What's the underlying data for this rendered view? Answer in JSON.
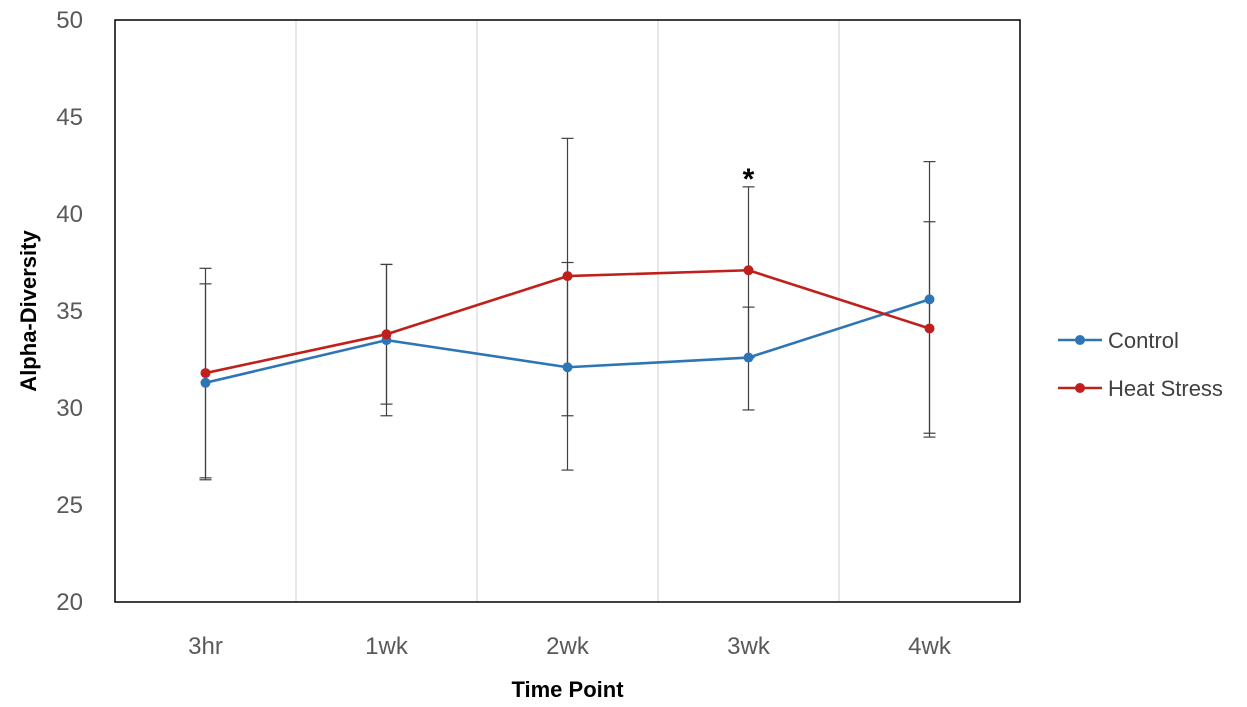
{
  "chart_data": {
    "type": "line",
    "title": "",
    "xlabel": "Time Point",
    "ylabel": "Alpha-Diversity",
    "categories": [
      "3hr",
      "1wk",
      "2wk",
      "3wk",
      "4wk"
    ],
    "ylim": [
      20,
      50
    ],
    "yticks": [
      "20",
      "25",
      "30",
      "35",
      "40",
      "45",
      "50"
    ],
    "grid": "vertical",
    "legend_position": "right",
    "series": [
      {
        "name": "Control",
        "color": "#2e75b6",
        "values": [
          31.3,
          33.5,
          32.1,
          32.6,
          35.6
        ],
        "error_high": [
          36.4,
          37.4,
          37.5,
          35.2,
          42.7
        ],
        "error_low": [
          26.3,
          29.6,
          26.8,
          29.9,
          28.5
        ]
      },
      {
        "name": "Heat Stress",
        "color": "#c0201c",
        "values": [
          31.8,
          33.8,
          36.8,
          37.1,
          34.1
        ],
        "error_high": [
          37.2,
          37.4,
          43.9,
          41.4,
          39.6
        ],
        "error_low": [
          26.4,
          30.2,
          29.6,
          32.6,
          28.7
        ]
      }
    ],
    "annotations": [
      {
        "text": "*",
        "category": "3wk",
        "y": 41.8
      }
    ]
  }
}
